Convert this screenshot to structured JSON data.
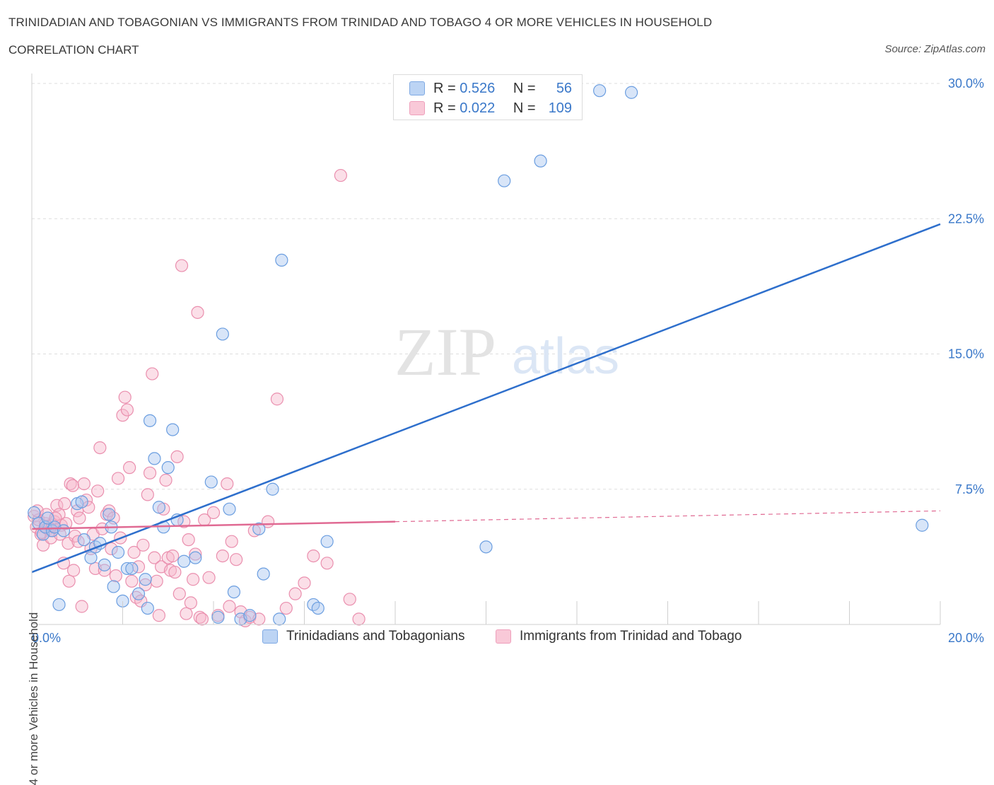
{
  "header": {
    "title": "TRINIDADIAN AND TOBAGONIAN VS IMMIGRANTS FROM TRINIDAD AND TOBAGO 4 OR MORE VEHICLES IN HOUSEHOLD",
    "subtitle": "CORRELATION CHART",
    "source": "Source: ZipAtlas.com"
  },
  "watermark": {
    "zip": "ZIP",
    "atlas": "atlas"
  },
  "legend": {
    "blue": {
      "r_label": "R =",
      "r_value": "0.526",
      "n_label": "N =",
      "n_value": "56"
    },
    "pink": {
      "r_label": "R =",
      "r_value": "0.022",
      "n_label": "N =",
      "n_value": "109"
    }
  },
  "colors": {
    "blue_fill": "#a9c6f0",
    "blue_stroke": "#6b9ee0",
    "blue_line": "#2e6fcc",
    "pink_fill": "#f6b8cd",
    "pink_stroke": "#ea8fae",
    "pink_line": "#e06a93",
    "tick_text": "#3a78c9",
    "grid": "#dddddd"
  },
  "chart_data": {
    "type": "scatter",
    "xlabel": "",
    "ylabel": "4 or more Vehicles in Household",
    "xlim": [
      0,
      20
    ],
    "ylim": [
      0,
      30
    ],
    "x_tick_labels": [
      {
        "v": 0,
        "label": "0.0%"
      },
      {
        "v": 20,
        "label": "20.0%"
      }
    ],
    "y_tick_labels": [
      {
        "v": 7.5,
        "label": "7.5%"
      },
      {
        "v": 15,
        "label": "15.0%"
      },
      {
        "v": 22.5,
        "label": "22.5%"
      },
      {
        "v": 30,
        "label": "30.0%"
      }
    ],
    "grid": true,
    "legend_position": "top-center",
    "series": [
      {
        "name": "Trinidadians and Tobagonians",
        "color": "#a9c6f0",
        "trend": {
          "x": [
            0,
            20
          ],
          "y": [
            2.9,
            22.2
          ],
          "dashed_from": null
        },
        "points": [
          [
            0.05,
            6.2
          ],
          [
            0.15,
            5.6
          ],
          [
            0.25,
            5.0
          ],
          [
            0.3,
            5.4
          ],
          [
            0.45,
            5.2
          ],
          [
            0.5,
            5.4
          ],
          [
            0.6,
            1.1
          ],
          [
            0.7,
            5.2
          ],
          [
            1.0,
            6.7
          ],
          [
            1.1,
            6.8
          ],
          [
            1.15,
            4.7
          ],
          [
            1.3,
            3.7
          ],
          [
            1.4,
            4.3
          ],
          [
            1.5,
            4.5
          ],
          [
            1.6,
            3.3
          ],
          [
            1.7,
            6.1
          ],
          [
            1.75,
            5.4
          ],
          [
            1.8,
            2.1
          ],
          [
            1.9,
            4.0
          ],
          [
            2.0,
            1.3
          ],
          [
            2.1,
            3.1
          ],
          [
            2.2,
            3.1
          ],
          [
            2.35,
            1.7
          ],
          [
            2.5,
            2.5
          ],
          [
            2.55,
            0.9
          ],
          [
            2.6,
            11.3
          ],
          [
            2.7,
            9.2
          ],
          [
            2.8,
            6.5
          ],
          [
            2.9,
            5.4
          ],
          [
            3.0,
            8.7
          ],
          [
            3.1,
            10.8
          ],
          [
            3.2,
            5.8
          ],
          [
            3.35,
            3.5
          ],
          [
            3.6,
            3.7
          ],
          [
            3.95,
            7.9
          ],
          [
            4.1,
            0.4
          ],
          [
            4.2,
            16.1
          ],
          [
            4.35,
            6.4
          ],
          [
            4.45,
            1.8
          ],
          [
            4.6,
            0.3
          ],
          [
            4.8,
            0.5
          ],
          [
            5.0,
            5.3
          ],
          [
            5.1,
            2.8
          ],
          [
            5.3,
            7.5
          ],
          [
            5.45,
            0.3
          ],
          [
            5.5,
            20.2
          ],
          [
            6.2,
            1.1
          ],
          [
            6.3,
            0.9
          ],
          [
            6.5,
            4.6
          ],
          [
            10.0,
            4.3
          ],
          [
            10.4,
            24.6
          ],
          [
            11.2,
            25.7
          ],
          [
            12.5,
            29.6
          ],
          [
            13.2,
            29.5
          ],
          [
            19.6,
            5.5
          ],
          [
            0.35,
            5.9
          ]
        ]
      },
      {
        "name": "Immigrants from Trinidad and Tobago",
        "color": "#f6b8cd",
        "trend": {
          "x": [
            0,
            20
          ],
          "y": [
            5.3,
            6.3
          ],
          "dashed_from": 8.0
        },
        "points": [
          [
            0.05,
            6.0
          ],
          [
            0.1,
            5.4
          ],
          [
            0.15,
            5.8
          ],
          [
            0.2,
            5.0
          ],
          [
            0.25,
            4.4
          ],
          [
            0.3,
            5.6
          ],
          [
            0.35,
            5.3
          ],
          [
            0.4,
            5.2
          ],
          [
            0.45,
            5.5
          ],
          [
            0.5,
            5.7
          ],
          [
            0.55,
            6.6
          ],
          [
            0.6,
            6.1
          ],
          [
            0.65,
            5.5
          ],
          [
            0.7,
            3.4
          ],
          [
            0.75,
            5.6
          ],
          [
            0.8,
            4.5
          ],
          [
            0.85,
            7.8
          ],
          [
            0.9,
            7.7
          ],
          [
            0.95,
            4.9
          ],
          [
            1.0,
            6.3
          ],
          [
            1.05,
            5.9
          ],
          [
            1.1,
            1.0
          ],
          [
            1.15,
            7.8
          ],
          [
            1.2,
            6.9
          ],
          [
            1.25,
            6.5
          ],
          [
            1.3,
            4.2
          ],
          [
            1.35,
            5.0
          ],
          [
            1.4,
            3.1
          ],
          [
            1.45,
            7.4
          ],
          [
            1.5,
            9.8
          ],
          [
            1.55,
            5.3
          ],
          [
            1.6,
            3.0
          ],
          [
            1.65,
            6.1
          ],
          [
            1.7,
            6.3
          ],
          [
            1.75,
            4.2
          ],
          [
            1.8,
            5.9
          ],
          [
            1.85,
            2.7
          ],
          [
            1.9,
            8.1
          ],
          [
            1.95,
            4.8
          ],
          [
            2.0,
            11.6
          ],
          [
            2.05,
            12.6
          ],
          [
            2.1,
            11.9
          ],
          [
            2.15,
            8.7
          ],
          [
            2.2,
            2.4
          ],
          [
            2.25,
            4.0
          ],
          [
            2.3,
            1.5
          ],
          [
            2.35,
            3.2
          ],
          [
            2.4,
            1.3
          ],
          [
            2.45,
            4.4
          ],
          [
            2.5,
            2.2
          ],
          [
            2.55,
            7.2
          ],
          [
            2.6,
            8.4
          ],
          [
            2.65,
            13.9
          ],
          [
            2.7,
            3.7
          ],
          [
            2.75,
            2.4
          ],
          [
            2.8,
            0.5
          ],
          [
            2.85,
            3.2
          ],
          [
            2.9,
            6.4
          ],
          [
            2.95,
            8.0
          ],
          [
            3.0,
            3.7
          ],
          [
            3.05,
            3.0
          ],
          [
            3.1,
            3.8
          ],
          [
            3.15,
            2.9
          ],
          [
            3.2,
            9.3
          ],
          [
            3.25,
            1.7
          ],
          [
            3.3,
            19.9
          ],
          [
            3.35,
            5.7
          ],
          [
            3.4,
            0.6
          ],
          [
            3.45,
            4.7
          ],
          [
            3.5,
            1.2
          ],
          [
            3.55,
            2.5
          ],
          [
            3.6,
            3.9
          ],
          [
            3.65,
            17.3
          ],
          [
            3.7,
            0.4
          ],
          [
            3.75,
            0.3
          ],
          [
            3.8,
            5.8
          ],
          [
            3.9,
            2.6
          ],
          [
            4.0,
            6.2
          ],
          [
            4.1,
            0.5
          ],
          [
            4.2,
            3.8
          ],
          [
            4.3,
            7.8
          ],
          [
            4.35,
            1.0
          ],
          [
            4.4,
            4.6
          ],
          [
            4.5,
            3.6
          ],
          [
            4.6,
            0.7
          ],
          [
            4.7,
            0.2
          ],
          [
            4.8,
            0.4
          ],
          [
            4.9,
            5.2
          ],
          [
            5.0,
            0.3
          ],
          [
            5.2,
            5.7
          ],
          [
            5.4,
            12.5
          ],
          [
            5.6,
            0.9
          ],
          [
            5.8,
            1.7
          ],
          [
            6.0,
            2.3
          ],
          [
            6.2,
            3.8
          ],
          [
            6.5,
            3.4
          ],
          [
            6.8,
            24.9
          ],
          [
            7.0,
            1.4
          ],
          [
            7.2,
            0.3
          ],
          [
            0.12,
            6.3
          ],
          [
            0.22,
            5.1
          ],
          [
            0.32,
            6.1
          ],
          [
            0.42,
            4.8
          ],
          [
            0.52,
            5.9
          ],
          [
            0.62,
            5.0
          ],
          [
            0.72,
            6.7
          ],
          [
            0.82,
            2.4
          ],
          [
            0.92,
            3.0
          ],
          [
            1.02,
            4.6
          ]
        ]
      }
    ]
  },
  "bottom_legend": {
    "blue": "Trinidadians and Tobagonians",
    "pink": "Immigrants from Trinidad and Tobago"
  }
}
